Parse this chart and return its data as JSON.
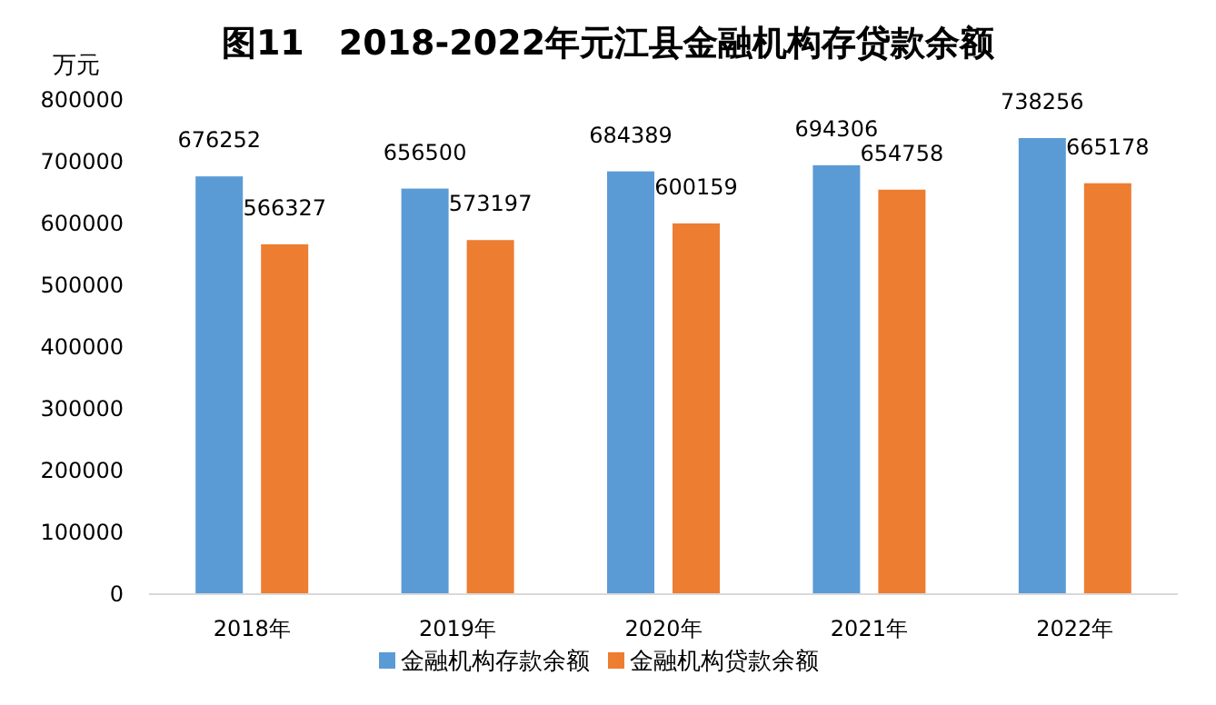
{
  "chart_data": {
    "type": "bar",
    "title": "图11　2018-2022年元江县金融机构存贷款余额",
    "ylabel": "万元",
    "categories": [
      "2018年",
      "2019年",
      "2020年",
      "2021年",
      "2022年"
    ],
    "series": [
      {
        "name": "金融机构存款余额",
        "color": "#5b9bd5",
        "values": [
          676252,
          656500,
          684389,
          694306,
          738256
        ]
      },
      {
        "name": "金融机构贷款余额",
        "color": "#ed7d31",
        "values": [
          566327,
          573197,
          600159,
          654758,
          665178
        ]
      }
    ],
    "ylim": [
      0,
      800000
    ],
    "yticks": [
      0,
      100000,
      200000,
      300000,
      400000,
      500000,
      600000,
      700000,
      800000
    ],
    "data_labels": true,
    "legend": "bottom"
  }
}
